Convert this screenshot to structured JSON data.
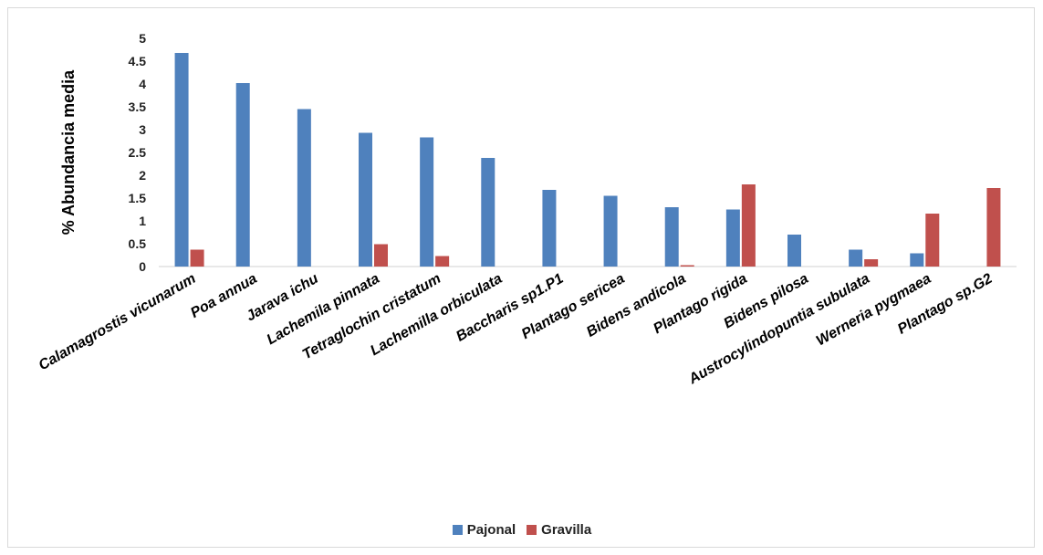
{
  "chart_data": {
    "type": "bar",
    "ylabel": "% Abundancia media",
    "ylim": [
      0,
      5
    ],
    "yticks": [
      "0",
      "0.5",
      "1",
      "1.5",
      "2",
      "2.5",
      "3",
      "3.5",
      "4",
      "4.5",
      "5"
    ],
    "grid": false,
    "legend_position": "bottom",
    "categories": [
      "Calamagrostis vicunarum",
      "Poa annua",
      "Jarava ichu",
      "Lachemila pinnata",
      "Tetraglochin cristatum",
      "Lachemilla orbiculata",
      "Baccharis sp1.P1",
      "Plantago sericea",
      "Bidens andicola",
      "Plantago rigida",
      "Bidens pilosa",
      "Austrocylindopuntia subulata",
      "Werneria pygmaea",
      "Plantago sp.G2"
    ],
    "series": [
      {
        "name": "Pajonal",
        "color": "#4f81bd",
        "values": [
          4.68,
          4.02,
          3.45,
          2.93,
          2.83,
          2.38,
          1.68,
          1.55,
          1.3,
          1.25,
          0.7,
          0.37,
          0.29,
          0
        ]
      },
      {
        "name": "Gravilla",
        "color": "#c0504d",
        "values": [
          0.37,
          0,
          0,
          0.49,
          0.23,
          0,
          0,
          0,
          0.03,
          1.8,
          0,
          0.16,
          1.16,
          1.72
        ]
      }
    ]
  }
}
